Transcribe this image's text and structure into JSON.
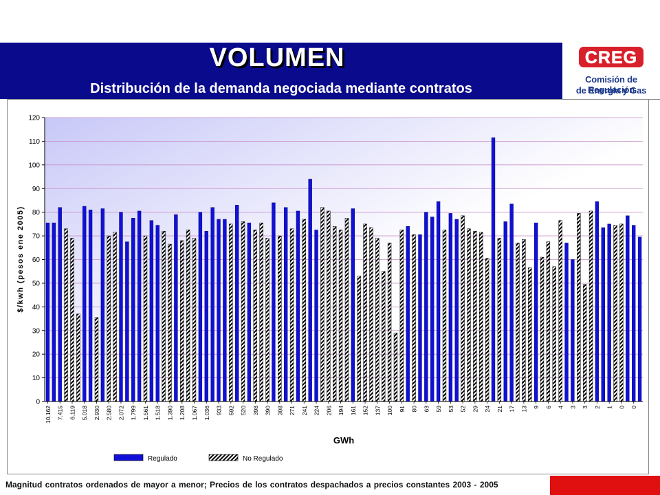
{
  "slide": {
    "title": "VOLUMEN",
    "subtitle": "Distribución de la demanda negociada mediante contratos",
    "footer": "Magnitud contratos ordenados de mayor a menor; Precios de los contratos despachados a precios constantes 2003 - 2005",
    "colors": {
      "header": "#0a0a8c",
      "accent_red": "#e01010",
      "logo_blue": "#1c3a8c",
      "logo_red": "#d8202a"
    }
  },
  "logo": {
    "mark": "CREG",
    "line1": "Comisión de Regulación",
    "line2": "de Energía y Gas"
  },
  "chart_data": {
    "type": "bar",
    "title": "",
    "xlabel": "GWh",
    "ylabel": "$/kwh (pesos ene 2005)",
    "ylim": [
      0,
      120
    ],
    "yticks": [
      0,
      10,
      20,
      30,
      40,
      50,
      60,
      70,
      80,
      90,
      100,
      110,
      120
    ],
    "grid": true,
    "legend_position": "bottom",
    "series_colors": {
      "Regulado": "#1010d8",
      "No Regulado": "hatched"
    },
    "x_tick_labels": [
      "10.162",
      "7.415",
      "6.119",
      "5.018",
      "2.930",
      "2.580",
      "2.072",
      "1.799",
      "1.561",
      "1.518",
      "1.390",
      "1.208",
      "1.067",
      "1.036",
      "933",
      "592",
      "520",
      "398",
      "390",
      "308",
      "271",
      "241",
      "224",
      "206",
      "194",
      "161",
      "152",
      "137",
      "100",
      "91",
      "80",
      "63",
      "59",
      "53",
      "52",
      "29",
      "24",
      "21",
      "17",
      "13",
      "9",
      "6",
      "4",
      "3",
      "3",
      "2",
      "1",
      "0",
      "0"
    ],
    "bars": [
      {
        "value": 75.5,
        "series": "Regulado"
      },
      {
        "value": 75.5,
        "series": "Regulado"
      },
      {
        "value": 82,
        "series": "Regulado"
      },
      {
        "value": 73,
        "series": "No Regulado"
      },
      {
        "value": 69,
        "series": "No Regulado"
      },
      {
        "value": 37,
        "series": "No Regulado"
      },
      {
        "value": 82.5,
        "series": "Regulado"
      },
      {
        "value": 81,
        "series": "Regulado"
      },
      {
        "value": 35.5,
        "series": "No Regulado"
      },
      {
        "value": 81.5,
        "series": "Regulado"
      },
      {
        "value": 70,
        "series": "No Regulado"
      },
      {
        "value": 71.5,
        "series": "No Regulado"
      },
      {
        "value": 80,
        "series": "Regulado"
      },
      {
        "value": 67.5,
        "series": "Regulado"
      },
      {
        "value": 77.5,
        "series": "Regulado"
      },
      {
        "value": 80.5,
        "series": "Regulado"
      },
      {
        "value": 70,
        "series": "No Regulado"
      },
      {
        "value": 76.5,
        "series": "Regulado"
      },
      {
        "value": 74.5,
        "series": "Regulado"
      },
      {
        "value": 72,
        "series": "No Regulado"
      },
      {
        "value": 66.5,
        "series": "No Regulado"
      },
      {
        "value": 79,
        "series": "Regulado"
      },
      {
        "value": 68,
        "series": "No Regulado"
      },
      {
        "value": 72.5,
        "series": "No Regulado"
      },
      {
        "value": 69,
        "series": "No Regulado"
      },
      {
        "value": 80,
        "series": "Regulado"
      },
      {
        "value": 72,
        "series": "Regulado"
      },
      {
        "value": 82,
        "series": "Regulado"
      },
      {
        "value": 77,
        "series": "Regulado"
      },
      {
        "value": 77,
        "series": "Regulado"
      },
      {
        "value": 75,
        "series": "No Regulado"
      },
      {
        "value": 83,
        "series": "Regulado"
      },
      {
        "value": 76,
        "series": "No Regulado"
      },
      {
        "value": 75.5,
        "series": "Regulado"
      },
      {
        "value": 72.5,
        "series": "No Regulado"
      },
      {
        "value": 75.5,
        "series": "No Regulado"
      },
      {
        "value": 69,
        "series": "No Regulado"
      },
      {
        "value": 84,
        "series": "Regulado"
      },
      {
        "value": 70,
        "series": "No Regulado"
      },
      {
        "value": 82,
        "series": "Regulado"
      },
      {
        "value": 73,
        "series": "No Regulado"
      },
      {
        "value": 80.5,
        "series": "Regulado"
      },
      {
        "value": 77,
        "series": "No Regulado"
      },
      {
        "value": 94,
        "series": "Regulado"
      },
      {
        "value": 72.5,
        "series": "Regulado"
      },
      {
        "value": 82,
        "series": "No Regulado"
      },
      {
        "value": 80.5,
        "series": "No Regulado"
      },
      {
        "value": 74,
        "series": "No Regulado"
      },
      {
        "value": 72.5,
        "series": "No Regulado"
      },
      {
        "value": 77.5,
        "series": "No Regulado"
      },
      {
        "value": 81.5,
        "series": "Regulado"
      },
      {
        "value": 53,
        "series": "No Regulado"
      },
      {
        "value": 75,
        "series": "No Regulado"
      },
      {
        "value": 73.5,
        "series": "No Regulado"
      },
      {
        "value": 69,
        "series": "No Regulado"
      },
      {
        "value": 55,
        "series": "No Regulado"
      },
      {
        "value": 67,
        "series": "No Regulado"
      },
      {
        "value": 29,
        "series": "No Regulado"
      },
      {
        "value": 72.5,
        "series": "No Regulado"
      },
      {
        "value": 74,
        "series": "Regulado"
      },
      {
        "value": 70.5,
        "series": "No Regulado"
      },
      {
        "value": 70.5,
        "series": "Regulado"
      },
      {
        "value": 80,
        "series": "Regulado"
      },
      {
        "value": 78,
        "series": "Regulado"
      },
      {
        "value": 84.5,
        "series": "Regulado"
      },
      {
        "value": 72.5,
        "series": "No Regulado"
      },
      {
        "value": 79.5,
        "series": "Regulado"
      },
      {
        "value": 77,
        "series": "Regulado"
      },
      {
        "value": 78.5,
        "series": "No Regulado"
      },
      {
        "value": 73,
        "series": "No Regulado"
      },
      {
        "value": 72,
        "series": "No Regulado"
      },
      {
        "value": 71.5,
        "series": "No Regulado"
      },
      {
        "value": 60.5,
        "series": "No Regulado"
      },
      {
        "value": 111.5,
        "series": "Regulado"
      },
      {
        "value": 69,
        "series": "No Regulado"
      },
      {
        "value": 76,
        "series": "Regulado"
      },
      {
        "value": 83.5,
        "series": "Regulado"
      },
      {
        "value": 67,
        "series": "No Regulado"
      },
      {
        "value": 68.5,
        "series": "No Regulado"
      },
      {
        "value": 56.5,
        "series": "No Regulado"
      },
      {
        "value": 75.5,
        "series": "Regulado"
      },
      {
        "value": 61,
        "series": "No Regulado"
      },
      {
        "value": 67.5,
        "series": "No Regulado"
      },
      {
        "value": 57,
        "series": "No Regulado"
      },
      {
        "value": 76.5,
        "series": "No Regulado"
      },
      {
        "value": 67,
        "series": "Regulado"
      },
      {
        "value": 60,
        "series": "Regulado"
      },
      {
        "value": 79.5,
        "series": "No Regulado"
      },
      {
        "value": 49.5,
        "series": "No Regulado"
      },
      {
        "value": 80.5,
        "series": "No Regulado"
      },
      {
        "value": 84.5,
        "series": "Regulado"
      },
      {
        "value": 73.5,
        "series": "Regulado"
      },
      {
        "value": 75,
        "series": "Regulado"
      },
      {
        "value": 74.5,
        "series": "No Regulado"
      },
      {
        "value": 75,
        "series": "No Regulado"
      },
      {
        "value": 78.5,
        "series": "Regulado"
      },
      {
        "value": 74.5,
        "series": "Regulado"
      },
      {
        "value": 69.5,
        "series": "Regulado"
      }
    ],
    "legend": [
      "Regulado",
      "No Regulado"
    ]
  }
}
